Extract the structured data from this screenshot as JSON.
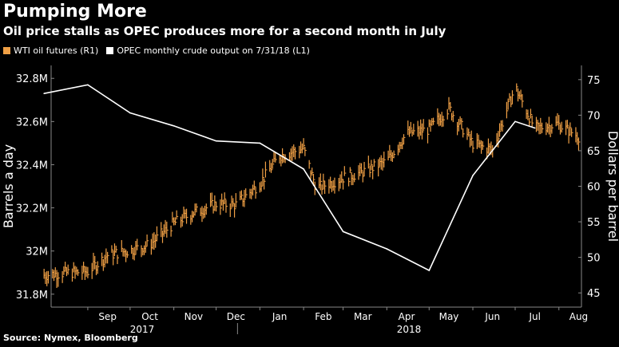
{
  "title": "Pumping More",
  "subtitle": "Oil price stalls as OPEC produces more for a second month in July",
  "source": "Source: Nymex, Bloomberg",
  "colors": {
    "background": "#000000",
    "wti": "#f0a045",
    "opec": "#ffffff"
  },
  "legend": [
    {
      "label": "WTI oil futures (R1)",
      "color": "#f0a045"
    },
    {
      "label": "OPEC monthly crude output on 7/31/18 (L1)",
      "color": "#ffffff"
    }
  ],
  "chart_data": {
    "type": "line",
    "x_ticks": [
      "Sep",
      "Oct",
      "Nov",
      "Dec",
      "Jan",
      "Feb",
      "Mar",
      "Apr",
      "May",
      "Jun",
      "Jul",
      "Aug"
    ],
    "year_labels": [
      "2017",
      "2018"
    ],
    "y_left": {
      "label": "Barrels a day",
      "ticks": [
        "31.8M",
        "32M",
        "32.2M",
        "32.4M",
        "32.6M",
        "32.8M"
      ],
      "range": [
        31.74,
        32.86
      ]
    },
    "y_right": {
      "label": "Dollars per barrel",
      "ticks": [
        "45",
        "50",
        "55",
        "60",
        "65",
        "70",
        "75"
      ],
      "range": [
        43,
        77
      ]
    },
    "series": [
      {
        "name": "OPEC monthly crude output on 7/31/18 (L1)",
        "axis": "left",
        "style": "line",
        "points": [
          [
            "2017-08-01",
            32.73
          ],
          [
            "2017-09-01",
            32.77
          ],
          [
            "2017-10-01",
            32.64
          ],
          [
            "2017-11-01",
            32.58
          ],
          [
            "2017-12-01",
            32.51
          ],
          [
            "2018-01-01",
            32.5
          ],
          [
            "2018-02-01",
            32.38
          ],
          [
            "2018-03-01",
            32.09
          ],
          [
            "2018-04-01",
            32.01
          ],
          [
            "2018-05-01",
            31.91
          ],
          [
            "2018-06-01",
            32.35
          ],
          [
            "2018-07-01",
            32.6
          ],
          [
            "2018-07-15",
            32.57
          ]
        ]
      },
      {
        "name": "WTI oil futures (R1)",
        "axis": "right",
        "style": "ohlc",
        "points": [
          [
            "2017-08-01",
            47.5
          ],
          [
            "2017-08-15",
            47.8
          ],
          [
            "2017-09-01",
            48.0
          ],
          [
            "2017-09-15",
            50.3
          ],
          [
            "2017-10-01",
            51.0
          ],
          [
            "2017-10-15",
            51.8
          ],
          [
            "2017-11-01",
            54.8
          ],
          [
            "2017-11-15",
            56.3
          ],
          [
            "2017-12-01",
            57.5
          ],
          [
            "2017-12-15",
            57.4
          ],
          [
            "2018-01-01",
            60.4
          ],
          [
            "2018-01-15",
            64.3
          ],
          [
            "2018-02-01",
            65.3
          ],
          [
            "2018-02-10",
            59.7
          ],
          [
            "2018-03-01",
            61.2
          ],
          [
            "2018-03-15",
            62.0
          ],
          [
            "2018-04-01",
            63.5
          ],
          [
            "2018-04-15",
            67.4
          ],
          [
            "2018-05-01",
            68.0
          ],
          [
            "2018-05-15",
            71.0
          ],
          [
            "2018-06-01",
            66.0
          ],
          [
            "2018-06-15",
            65.1
          ],
          [
            "2018-07-01",
            74.0
          ],
          [
            "2018-07-15",
            68.1
          ],
          [
            "2018-07-31",
            68.8
          ],
          [
            "2018-08-15",
            67.0
          ]
        ]
      }
    ]
  }
}
